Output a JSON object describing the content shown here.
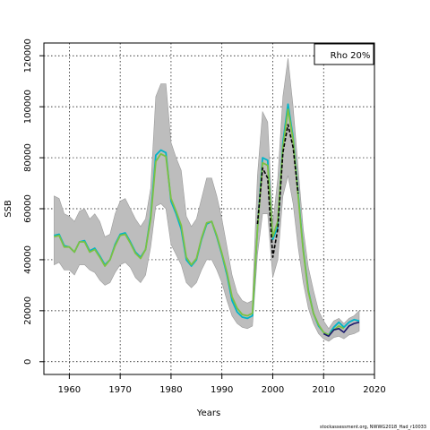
{
  "chart_data": {
    "type": "line",
    "title": "",
    "xlabel": "Years",
    "ylabel": "SSB",
    "xlim": [
      1955,
      2020
    ],
    "ylim": [
      -5000,
      125000
    ],
    "x_ticks": [
      1960,
      1970,
      1980,
      1990,
      2000,
      2010,
      2020
    ],
    "x_tick_labels": [
      "1960",
      "1970",
      "1980",
      "1990",
      "2000",
      "2010",
      "2020"
    ],
    "y_ticks": [
      0,
      20000,
      40000,
      60000,
      80000,
      100000,
      120000
    ],
    "y_tick_labels": [
      "0",
      "20000",
      "40000",
      "60000",
      "80000",
      "100000",
      "120000"
    ],
    "grid": true,
    "legend_text": "Rho 20%",
    "legend_position": "top-right",
    "credit": "stockassessment.org, NWWG2018_Had_r10033",
    "band": {
      "years": [
        1957,
        1958,
        1959,
        1960,
        1961,
        1962,
        1963,
        1964,
        1965,
        1966,
        1967,
        1968,
        1969,
        1970,
        1971,
        1972,
        1973,
        1974,
        1975,
        1976,
        1977,
        1978,
        1979,
        1980,
        1981,
        1982,
        1983,
        1984,
        1985,
        1986,
        1987,
        1988,
        1989,
        1990,
        1991,
        1992,
        1993,
        1994,
        1995,
        1996,
        1997,
        1998,
        1999,
        2000,
        2001,
        2002,
        2003,
        2004,
        2005,
        2006,
        2007,
        2008,
        2009,
        2010,
        2011,
        2012,
        2013,
        2014,
        2015,
        2016,
        2017
      ],
      "upper": [
        65000,
        64000,
        58000,
        57000,
        55000,
        59000,
        60000,
        56000,
        58000,
        55000,
        49000,
        50000,
        58000,
        63000,
        64000,
        60000,
        56000,
        53000,
        56000,
        68000,
        104000,
        109000,
        109000,
        86000,
        80000,
        75000,
        57000,
        53000,
        56000,
        64000,
        72000,
        72000,
        65000,
        56000,
        45000,
        34000,
        27000,
        24000,
        23000,
        24000,
        73000,
        98000,
        94000,
        54000,
        72000,
        104000,
        119000,
        100000,
        76000,
        52000,
        37000,
        28000,
        20000,
        16000,
        13000,
        16000,
        17000,
        15000,
        17000,
        18000,
        20000
      ],
      "lower": [
        38000,
        39000,
        36000,
        36000,
        34000,
        38000,
        38000,
        36000,
        35000,
        32000,
        30000,
        31000,
        35000,
        38000,
        39000,
        37000,
        33000,
        31000,
        34000,
        45000,
        61000,
        62000,
        60000,
        46000,
        42000,
        38000,
        31000,
        29000,
        31000,
        36000,
        40000,
        40000,
        36000,
        31000,
        24000,
        18000,
        15000,
        13500,
        13000,
        14000,
        42000,
        58000,
        58000,
        33000,
        40000,
        65000,
        73000,
        62000,
        45000,
        31000,
        21000,
        15000,
        11000,
        9000,
        8000,
        9500,
        10000,
        9000,
        10500,
        11000,
        12000
      ]
    },
    "series": [
      {
        "color": "#00b4c8",
        "years": [
          1957,
          1958,
          1959,
          1960,
          1961,
          1962,
          1963,
          1964,
          1965,
          1966,
          1967,
          1968,
          1969,
          1970,
          1971,
          1972,
          1973,
          1974,
          1975,
          1976,
          1977,
          1978,
          1979,
          1980,
          1981,
          1982,
          1983,
          1984,
          1985,
          1986,
          1987,
          1988,
          1989,
          1990,
          1991,
          1992,
          1993,
          1994,
          1995,
          1996,
          1997,
          1998,
          1999,
          2000,
          2001,
          2002,
          2003,
          2004,
          2005,
          2006,
          2007,
          2008,
          2009,
          2010,
          2011,
          2012,
          2013,
          2014,
          2015,
          2016,
          2017
        ],
        "values": [
          49500,
          50000,
          45500,
          45000,
          43000,
          47000,
          47500,
          43500,
          44500,
          41500,
          38000,
          40000,
          46000,
          50000,
          50500,
          47000,
          43000,
          41000,
          44000,
          57000,
          81000,
          83000,
          82000,
          63000,
          58000,
          52000,
          40000,
          37500,
          40000,
          48000,
          54000,
          55000,
          49000,
          42000,
          34000,
          24000,
          19500,
          17500,
          17000,
          18000,
          52000,
          80000,
          79000,
          48000,
          53000,
          86000,
          101000,
          88000,
          66000,
          44000,
          28000,
          19000,
          14000,
          11500,
          10500,
          13500,
          15500,
          13500,
          15500,
          16500,
          16000
        ]
      },
      {
        "color": "#7cc142",
        "years": [
          1957,
          1958,
          1959,
          1960,
          1961,
          1962,
          1963,
          1964,
          1965,
          1966,
          1967,
          1968,
          1969,
          1970,
          1971,
          1972,
          1973,
          1974,
          1975,
          1976,
          1977,
          1978,
          1979,
          1980,
          1981,
          1982,
          1983,
          1984,
          1985,
          1986,
          1987,
          1988,
          1989,
          1990,
          1991,
          1992,
          1993,
          1994,
          1995,
          1996,
          1997,
          1998,
          1999,
          2000,
          2001,
          2002,
          2003,
          2004,
          2005,
          2006,
          2007,
          2008,
          2009,
          2010,
          2011,
          2012,
          2013,
          2014
        ],
        "values": [
          49000,
          49500,
          45000,
          45000,
          43000,
          47000,
          47000,
          43000,
          44000,
          41000,
          37500,
          40000,
          45500,
          49500,
          50000,
          46500,
          42500,
          40500,
          44000,
          56000,
          78500,
          81500,
          80500,
          64000,
          59000,
          53500,
          41000,
          38000,
          40500,
          48500,
          54500,
          55000,
          49500,
          42500,
          35000,
          25500,
          21000,
          18500,
          18000,
          19000,
          52000,
          78000,
          77000,
          49000,
          55000,
          84000,
          99000,
          87000,
          65000,
          43500,
          27500,
          19000,
          14500,
          11500,
          10500,
          12500,
          14000,
          13000
        ]
      },
      {
        "color": "#1a1a6e",
        "years": [
          2010,
          2011,
          2012,
          2013,
          2014,
          2015,
          2016,
          2017
        ],
        "values": [
          11000,
          10000,
          12500,
          13000,
          11500,
          14000,
          15000,
          15500
        ]
      },
      {
        "color": "#000000",
        "years": [
          1997,
          1998,
          1999,
          2000,
          2001,
          2002,
          2003,
          2004,
          2005
        ],
        "values": [
          54000,
          76000,
          72000,
          41000,
          52000,
          82000,
          93000,
          84000,
          66000
        ]
      }
    ]
  }
}
